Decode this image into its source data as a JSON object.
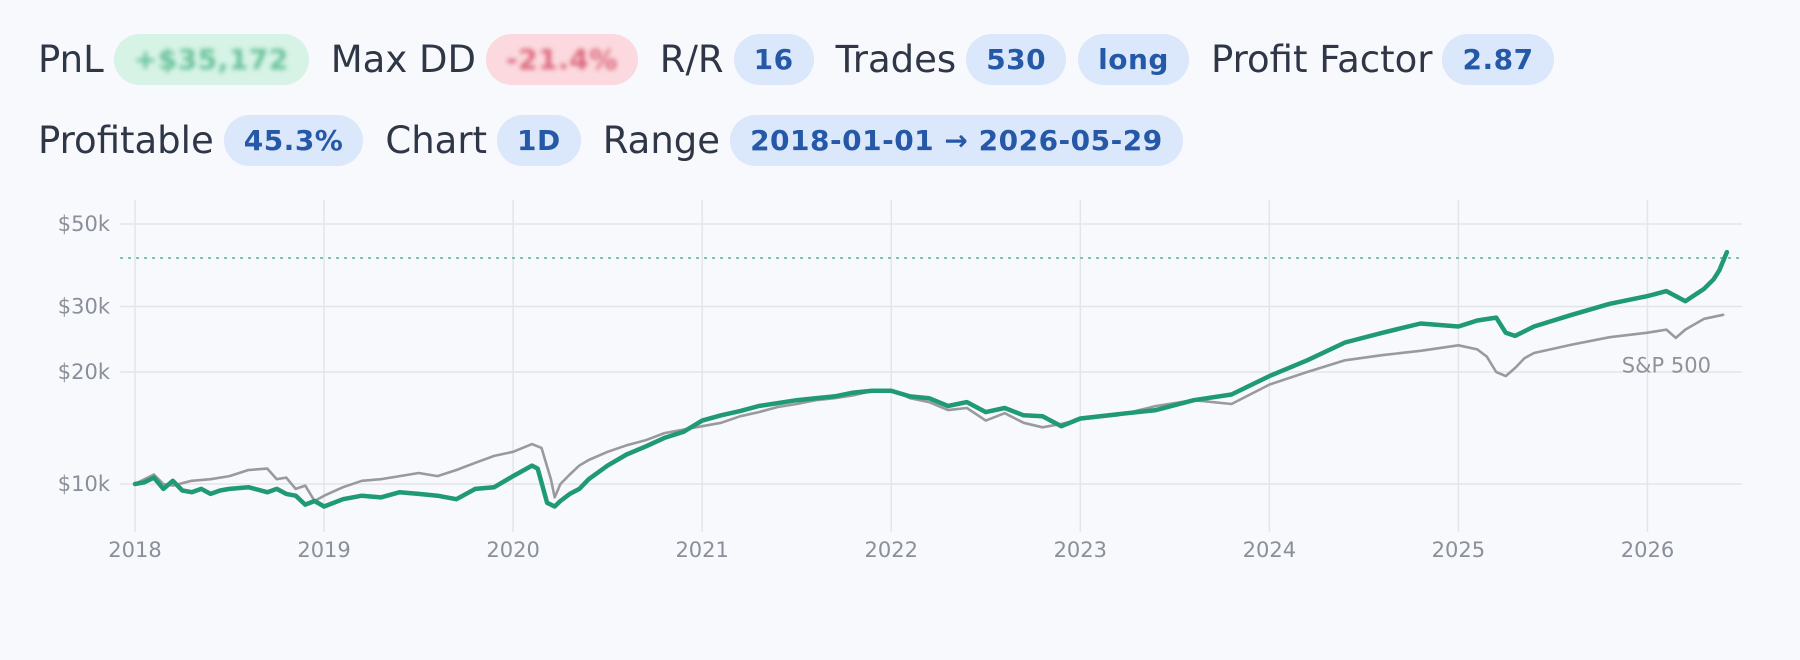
{
  "stats": {
    "pnl_label": "PnL",
    "pnl_value": "+$35,172",
    "maxdd_label": "Max DD",
    "maxdd_value": "-21.4%",
    "rr_label": "R/R",
    "rr_value": "16",
    "trades_label": "Trades",
    "trades_value": "530",
    "direction": "long",
    "pf_label": "Profit Factor",
    "pf_value": "2.87",
    "profitable_label": "Profitable",
    "profitable_value": "45.3%",
    "chart_label": "Chart",
    "chart_value": "1D",
    "range_label": "Range",
    "range_value": "2018-01-01 → 2026-05-29"
  },
  "colors": {
    "strategy": "#1f9a72",
    "benchmark": "#9a9a9e",
    "grid": "#e3e5ea",
    "pill_blue_bg": "#dbe7fa",
    "pill_blue_text": "#2658a8"
  },
  "chart_data": {
    "type": "line",
    "title": "",
    "xlabel": "",
    "ylabel": "",
    "yscale": "log",
    "grid": true,
    "xlim": [
      2018.0,
      2026.5
    ],
    "ylim": [
      8000,
      58000
    ],
    "x_ticks": [
      2018,
      2019,
      2020,
      2021,
      2022,
      2023,
      2024,
      2025,
      2026
    ],
    "x_tick_labels": [
      "2018",
      "2019",
      "2020",
      "2021",
      "2022",
      "2023",
      "2024",
      "2025",
      "2026"
    ],
    "y_ticks": [
      10000,
      20000,
      30000,
      50000
    ],
    "y_tick_labels": [
      "$10k",
      "$20k",
      "$30k",
      "$50k"
    ],
    "reference_line": {
      "y": 40500,
      "style": "dotted"
    },
    "annotations": [
      {
        "text": "S&P 500"
      }
    ],
    "series": [
      {
        "key": "strategy",
        "x": [
          2018.0,
          2018.05,
          2018.1,
          2018.15,
          2018.2,
          2018.25,
          2018.3,
          2018.35,
          2018.4,
          2018.45,
          2018.5,
          2018.6,
          2018.7,
          2018.75,
          2018.8,
          2018.85,
          2018.9,
          2018.95,
          2019.0,
          2019.1,
          2019.2,
          2019.3,
          2019.4,
          2019.5,
          2019.6,
          2019.7,
          2019.8,
          2019.9,
          2020.0,
          2020.1,
          2020.13,
          2020.18,
          2020.22,
          2020.25,
          2020.3,
          2020.35,
          2020.4,
          2020.5,
          2020.6,
          2020.7,
          2020.8,
          2020.9,
          2021.0,
          2021.1,
          2021.2,
          2021.3,
          2021.4,
          2021.5,
          2021.6,
          2021.7,
          2021.8,
          2021.9,
          2022.0,
          2022.1,
          2022.2,
          2022.3,
          2022.4,
          2022.5,
          2022.6,
          2022.7,
          2022.8,
          2022.9,
          2023.0,
          2023.2,
          2023.4,
          2023.6,
          2023.8,
          2024.0,
          2024.2,
          2024.4,
          2024.6,
          2024.8,
          2025.0,
          2025.1,
          2025.2,
          2025.25,
          2025.3,
          2025.4,
          2025.6,
          2025.8,
          2026.0,
          2026.1,
          2026.2,
          2026.3,
          2026.35,
          2026.38,
          2026.42
        ],
        "y": [
          10000,
          10100,
          10400,
          9700,
          10200,
          9600,
          9500,
          9700,
          9400,
          9600,
          9700,
          9800,
          9500,
          9700,
          9400,
          9300,
          8800,
          9000,
          8700,
          9100,
          9300,
          9200,
          9500,
          9400,
          9300,
          9100,
          9700,
          9800,
          10500,
          11200,
          11000,
          8900,
          8700,
          9000,
          9400,
          9700,
          10300,
          11200,
          12000,
          12600,
          13300,
          13800,
          14800,
          15300,
          15700,
          16200,
          16500,
          16800,
          17000,
          17200,
          17600,
          17800,
          17800,
          17200,
          17000,
          16200,
          16600,
          15600,
          16000,
          15300,
          15200,
          14300,
          15000,
          15400,
          15800,
          16800,
          17400,
          19500,
          21500,
          24000,
          25500,
          27000,
          26500,
          27500,
          28000,
          25500,
          25000,
          26500,
          28500,
          30500,
          32000,
          33000,
          31000,
          33500,
          35500,
          37500,
          42000
        ]
      },
      {
        "key": "benchmark",
        "name": "S&P 500",
        "x": [
          2018.0,
          2018.05,
          2018.1,
          2018.15,
          2018.2,
          2018.3,
          2018.4,
          2018.5,
          2018.6,
          2018.7,
          2018.75,
          2018.8,
          2018.85,
          2018.9,
          2018.95,
          2019.0,
          2019.1,
          2019.2,
          2019.3,
          2019.4,
          2019.5,
          2019.6,
          2019.7,
          2019.8,
          2019.9,
          2020.0,
          2020.1,
          2020.15,
          2020.2,
          2020.22,
          2020.25,
          2020.3,
          2020.35,
          2020.4,
          2020.5,
          2020.6,
          2020.7,
          2020.8,
          2020.9,
          2021.0,
          2021.1,
          2021.2,
          2021.3,
          2021.4,
          2021.5,
          2021.6,
          2021.7,
          2021.8,
          2021.9,
          2022.0,
          2022.1,
          2022.2,
          2022.3,
          2022.4,
          2022.5,
          2022.6,
          2022.7,
          2022.8,
          2022.9,
          2023.0,
          2023.2,
          2023.4,
          2023.6,
          2023.8,
          2024.0,
          2024.2,
          2024.4,
          2024.6,
          2024.8,
          2025.0,
          2025.1,
          2025.15,
          2025.2,
          2025.25,
          2025.3,
          2025.35,
          2025.4,
          2025.6,
          2025.8,
          2026.0,
          2026.1,
          2026.15,
          2026.2,
          2026.3,
          2026.4
        ],
        "y": [
          10000,
          10300,
          10600,
          10000,
          9900,
          10200,
          10300,
          10500,
          10900,
          11000,
          10300,
          10400,
          9700,
          9900,
          9000,
          9300,
          9800,
          10200,
          10300,
          10500,
          10700,
          10500,
          10900,
          11400,
          11900,
          12200,
          12800,
          12500,
          10300,
          9200,
          10000,
          10600,
          11200,
          11600,
          12200,
          12700,
          13100,
          13700,
          14000,
          14300,
          14600,
          15200,
          15600,
          16100,
          16400,
          16800,
          17000,
          17300,
          17800,
          17900,
          17000,
          16600,
          15800,
          16000,
          14800,
          15500,
          14600,
          14200,
          14500,
          14900,
          15300,
          16200,
          16800,
          16400,
          18500,
          20000,
          21500,
          22200,
          22800,
          23600,
          23000,
          22000,
          20000,
          19500,
          20500,
          21800,
          22500,
          23700,
          24800,
          25500,
          26000,
          24700,
          26000,
          27800,
          28500
        ]
      }
    ]
  }
}
